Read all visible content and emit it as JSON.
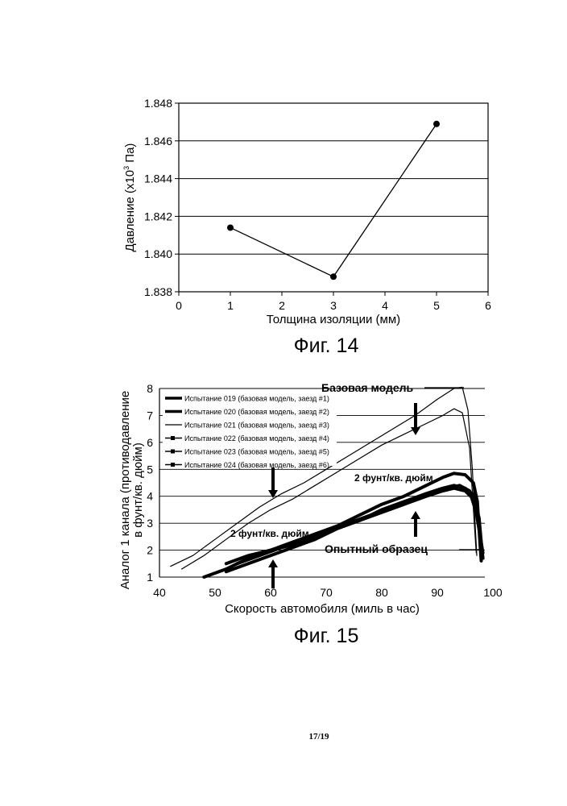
{
  "page_number": "17/19",
  "chart_data": [
    {
      "type": "line",
      "caption": "Фиг. 14",
      "xlabel": "Толщина изоляции (мм)",
      "ylabel": "Давление (x10³ Па)",
      "xlim": [
        0,
        6
      ],
      "ylim": [
        1.838,
        1.848
      ],
      "x_ticks": [
        "0",
        "1",
        "2",
        "3",
        "4",
        "5",
        "6"
      ],
      "y_ticks": [
        "1.838",
        "1.840",
        "1.842",
        "1.844",
        "1.846",
        "1.848"
      ],
      "grid": "horizontal",
      "series": [
        {
          "x": [
            1,
            3,
            5
          ],
          "y": [
            1.8414,
            1.8388,
            1.8469
          ]
        }
      ]
    },
    {
      "type": "line",
      "caption": "Фиг. 15",
      "xlabel": "Скорость автомобиля (миль в час)",
      "ylabel": "Аналог 1 канала (противодавление в фунт/кв. дюйм)",
      "xlim": [
        40,
        100
      ],
      "ylim": [
        1,
        8
      ],
      "x_ticks": [
        "40",
        "50",
        "60",
        "70",
        "80",
        "90",
        "100"
      ],
      "y_ticks": [
        "1",
        "2",
        "3",
        "4",
        "5",
        "6",
        "7",
        "8"
      ],
      "grid": "horizontal",
      "legend": "top-left",
      "annotations": {
        "base_model": "Базовая модель",
        "prototype": "Опытный образец",
        "delta_right": "2 фунт/кв. дюйм",
        "delta_left": "2 фунт/кв. дюйм"
      },
      "series": [
        {
          "name": "Испытание 019 (базовая модель, заезд #1)",
          "x": [
            48,
            52,
            56,
            60,
            64,
            68,
            72,
            76,
            80,
            84,
            88,
            91,
            93,
            95,
            96.5,
            97.2,
            97.5,
            97.8,
            97.9
          ],
          "y": [
            1.0,
            1.3,
            1.7,
            2.0,
            2.3,
            2.6,
            2.9,
            3.3,
            3.7,
            4.0,
            4.4,
            4.7,
            4.85,
            4.8,
            4.5,
            3.8,
            2.8,
            1.9,
            1.6
          ]
        },
        {
          "name": "Испытание 020 (базовая модель, заезд #2)",
          "x": [
            52,
            56,
            60,
            64,
            68,
            72,
            76,
            80,
            84,
            88,
            91,
            93,
            95,
            96.8,
            97.5,
            97.8,
            98
          ],
          "y": [
            1.5,
            1.8,
            2.0,
            2.2,
            2.5,
            2.8,
            3.1,
            3.5,
            3.8,
            4.1,
            4.3,
            4.4,
            4.3,
            4.0,
            3.0,
            2.2,
            1.8
          ]
        },
        {
          "name": "Испытание 021 (базовая модель, заезд #3)",
          "x": [
            42,
            46,
            50,
            54,
            58,
            62,
            66,
            70,
            74,
            78,
            82,
            86,
            90,
            93,
            94.5,
            95.5,
            96.3,
            96.8,
            97.1
          ],
          "y": [
            1.4,
            1.8,
            2.4,
            3.0,
            3.6,
            4.1,
            4.5,
            5.0,
            5.5,
            6.0,
            6.5,
            7.0,
            7.6,
            8.0,
            8.05,
            7.2,
            5.0,
            3.0,
            1.8
          ]
        },
        {
          "name": "Испытание 022 (базовая модель, заезд #4)",
          "x": [
            52,
            56,
            60,
            64,
            68,
            72,
            76,
            80,
            84,
            88,
            91,
            93,
            95,
            96.5,
            97.5,
            97.9,
            98.2
          ],
          "y": [
            1.2,
            1.5,
            1.8,
            2.1,
            2.4,
            2.8,
            3.1,
            3.4,
            3.7,
            4.0,
            4.2,
            4.3,
            4.2,
            3.9,
            3.2,
            2.3,
            1.7
          ]
        },
        {
          "name": "Испытание 023 (базовая модель, заезд #5)",
          "x": [
            44,
            48,
            52,
            56,
            60,
            64,
            68,
            72,
            76,
            80,
            84,
            88,
            91,
            93,
            94.5,
            95.8,
            96.5,
            97
          ],
          "y": [
            1.3,
            1.8,
            2.4,
            3.0,
            3.5,
            3.9,
            4.4,
            4.9,
            5.4,
            5.9,
            6.3,
            6.7,
            7.0,
            7.25,
            7.1,
            5.8,
            3.5,
            1.9
          ]
        },
        {
          "name": "Испытание 024 (базовая модель, заезд #6)",
          "x": [
            54,
            58,
            62,
            66,
            70,
            74,
            78,
            82,
            86,
            89,
            92,
            94,
            95.8,
            97,
            97.8,
            98.2
          ],
          "y": [
            1.5,
            1.8,
            2.1,
            2.4,
            2.7,
            3.0,
            3.3,
            3.6,
            3.9,
            4.1,
            4.3,
            4.4,
            4.2,
            3.4,
            2.4,
            1.9
          ]
        }
      ]
    }
  ]
}
